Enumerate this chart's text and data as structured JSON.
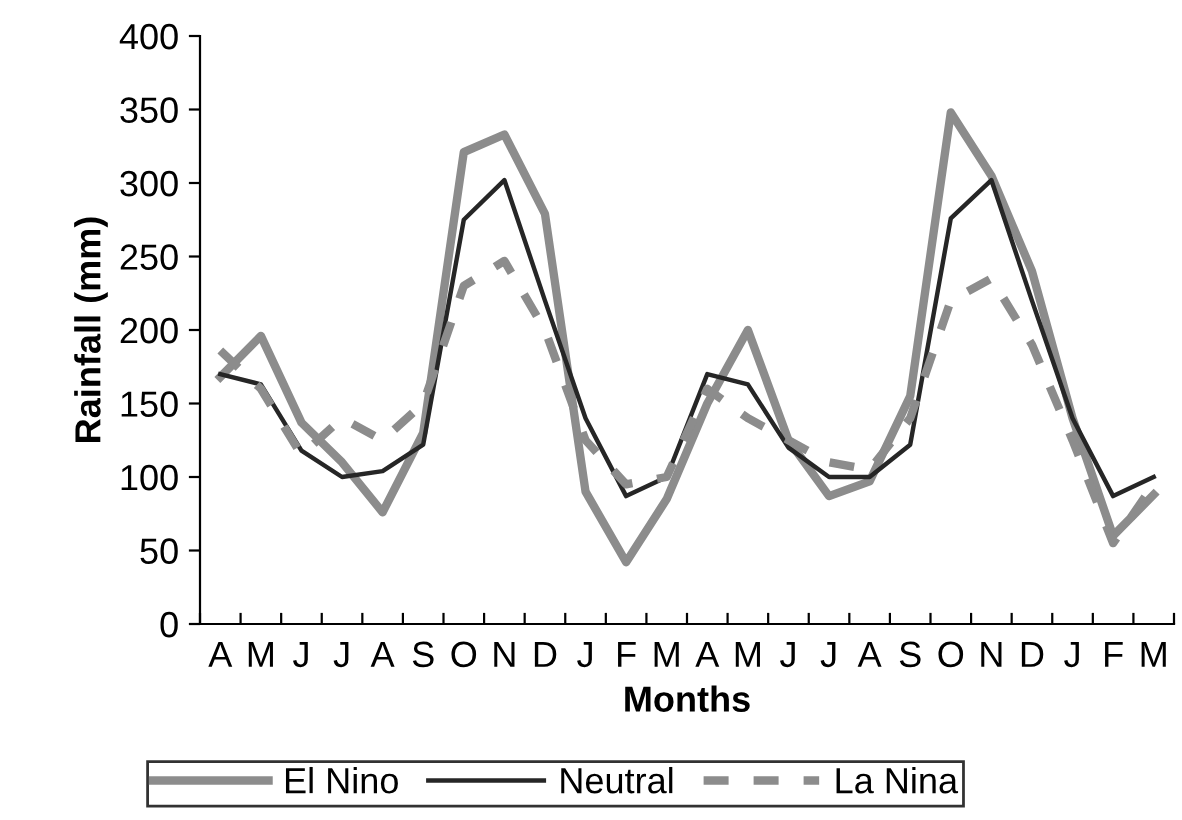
{
  "chart_data": {
    "type": "line",
    "xlabel": "Months",
    "ylabel": "Rainfall (mm)",
    "categories": [
      "A",
      "M",
      "J",
      "J",
      "A",
      "S",
      "O",
      "N",
      "D",
      "J",
      "F",
      "M",
      "A",
      "M",
      "J",
      "J",
      "A",
      "S",
      "O",
      "N",
      "D",
      "J",
      "F",
      "M"
    ],
    "ylim": [
      0,
      400
    ],
    "yticks": [
      0,
      50,
      100,
      150,
      200,
      250,
      300,
      350,
      400
    ],
    "grid": false,
    "legend": "bottom",
    "marker": "none",
    "series": [
      {
        "name": "El Nino",
        "color": "#8c8c8c",
        "line_style": "solid",
        "values": [
          168,
          196,
          137,
          110,
          76,
          130,
          321,
          333,
          279,
          90,
          42,
          85,
          150,
          200,
          125,
          87,
          97,
          155,
          348,
          305,
          240,
          140,
          60,
          88
        ]
      },
      {
        "name": "Neutral",
        "color": "#262626",
        "line_style": "solid",
        "values": [
          170,
          163,
          118,
          100,
          104,
          122,
          275,
          302,
          220,
          140,
          87,
          100,
          170,
          163,
          120,
          100,
          100,
          122,
          276,
          302,
          220,
          140,
          87,
          100
        ]
      },
      {
        "name": "La Nina",
        "color": "#8c8c8c",
        "line_style": "dashed",
        "values": [
          186,
          160,
          115,
          140,
          125,
          150,
          230,
          247,
          200,
          125,
          95,
          100,
          160,
          140,
          125,
          110,
          105,
          140,
          220,
          235,
          190,
          125,
          55,
          95
        ]
      }
    ]
  }
}
